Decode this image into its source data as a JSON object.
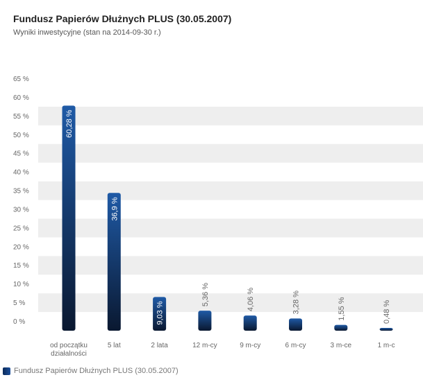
{
  "header": {
    "title": "Fundusz Papierów Dłużnych PLUS (30.05.2007)",
    "subtitle": "Wyniki inwestycyjne (stan na 2014-09-30 r.)"
  },
  "legend": {
    "label": "Fundusz Papierów Dłużnych PLUS (30.05.2007)"
  },
  "colors": {
    "bar_top": "#1f5aa6",
    "bar_bottom": "#0a1830",
    "band": "#eeeeee",
    "label_inside": "#ffffff",
    "label_outside": "#666666",
    "axis_text": "#666666"
  },
  "chart_data": {
    "type": "bar",
    "title": "Fundusz Papierów Dłużnych PLUS (30.05.2007)",
    "subtitle": "Wyniki inwestycyjne (stan na 2014-09-30 r.)",
    "categories": [
      [
        "od początku",
        "działalności"
      ],
      [
        "5 lat"
      ],
      [
        "2 lata"
      ],
      [
        "12 m-cy"
      ],
      [
        "9 m-cy"
      ],
      [
        "6 m-cy"
      ],
      [
        "3 m-ce"
      ],
      [
        "1 m-c"
      ]
    ],
    "series": [
      {
        "name": "Fundusz Papierów Dłużnych PLUS (30.05.2007)",
        "values": [
          60.28,
          36.9,
          9.03,
          5.36,
          4.06,
          3.28,
          1.55,
          0.48
        ],
        "labels": [
          "60,28 %",
          "36,9 %",
          "9,03 %",
          "5,36 %",
          "4,06 %",
          "3,28 %",
          "1,55 %",
          "0,48 %"
        ]
      }
    ],
    "yticks": [
      "0 %",
      "5 %",
      "10 %",
      "15 %",
      "20 %",
      "25 %",
      "30 %",
      "35 %",
      "40 %",
      "45 %",
      "50 %",
      "55 %",
      "60 %",
      "65 %"
    ],
    "ylim": [
      0,
      65
    ],
    "grid": "alternating bands",
    "legend_position": "bottom-left"
  }
}
